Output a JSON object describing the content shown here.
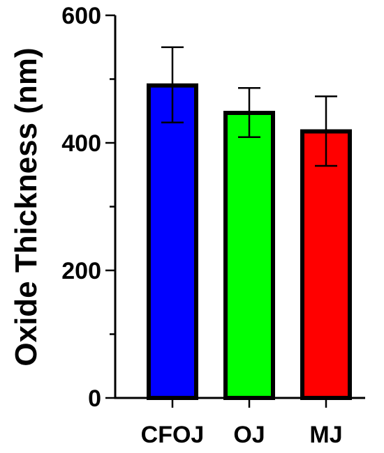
{
  "chart_data": {
    "type": "bar",
    "title": "",
    "xlabel": "",
    "ylabel": "Oxide Thickness (nm)",
    "ylim": [
      0,
      600
    ],
    "yticks": [
      0,
      200,
      400,
      600
    ],
    "ytick_labels": [
      "0",
      "200",
      "400",
      "600"
    ],
    "categories": [
      "CFOJ",
      "OJ",
      "MJ"
    ],
    "values": [
      490,
      447,
      418
    ],
    "error_lower": [
      432,
      409,
      364
    ],
    "error_upper": [
      550,
      486,
      473
    ],
    "colors": [
      "#0000ff",
      "#00ff00",
      "#ff0000"
    ],
    "grid": false,
    "legend": "none"
  }
}
